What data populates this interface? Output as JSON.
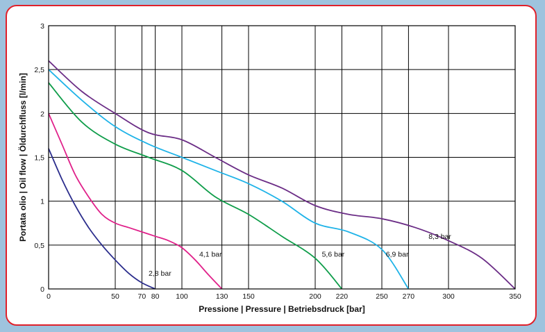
{
  "chart_data": {
    "type": "line",
    "xlabel": "Pressione | Pressure | Betriebsdruck [bar]",
    "ylabel": "Portata olio | Oil flow | Öldurchfluss [l/min]",
    "xlim": [
      0,
      350
    ],
    "ylim": [
      0,
      3
    ],
    "xticks": [
      0,
      50,
      70,
      80,
      100,
      130,
      150,
      200,
      220,
      250,
      270,
      300,
      350
    ],
    "xtick_labels": [
      "0",
      "50",
      "70",
      "80",
      "100",
      "130",
      "150",
      "200",
      "220",
      "250",
      "270",
      "300",
      "350"
    ],
    "yticks": [
      0,
      0.5,
      1,
      1.5,
      2,
      2.5,
      3
    ],
    "ytick_labels": [
      "0",
      "0,5",
      "1",
      "1,5",
      "2",
      "2,5",
      "3"
    ],
    "grid": true,
    "series": [
      {
        "name": "2,8 bar",
        "color": "#2b2d8c",
        "x": [
          0,
          10,
          20,
          30,
          40,
          50,
          60,
          70,
          80
        ],
        "y": [
          1.6,
          1.25,
          0.95,
          0.7,
          0.5,
          0.33,
          0.18,
          0.07,
          0.0
        ]
      },
      {
        "name": "4,1 bar",
        "color": "#e0218a",
        "x": [
          0,
          10,
          20,
          30,
          40,
          50,
          60,
          70,
          80,
          90,
          100,
          110,
          120,
          130
        ],
        "y": [
          2.0,
          1.65,
          1.3,
          1.05,
          0.85,
          0.75,
          0.7,
          0.65,
          0.6,
          0.55,
          0.47,
          0.33,
          0.16,
          0.0
        ]
      },
      {
        "name": "5,6 bar",
        "color": "#0f9d4a",
        "x": [
          0,
          25,
          50,
          75,
          100,
          125,
          150,
          175,
          200,
          220
        ],
        "y": [
          2.35,
          1.9,
          1.65,
          1.5,
          1.35,
          1.05,
          0.85,
          0.6,
          0.35,
          0.0
        ]
      },
      {
        "name": "6,9 bar",
        "color": "#1fb3e8",
        "x": [
          0,
          25,
          50,
          75,
          100,
          125,
          150,
          175,
          200,
          225,
          250,
          270
        ],
        "y": [
          2.5,
          2.15,
          1.85,
          1.65,
          1.5,
          1.35,
          1.2,
          1.0,
          0.75,
          0.65,
          0.45,
          0.0
        ]
      },
      {
        "name": "8,3 bar",
        "color": "#6b2d86",
        "x": [
          0,
          25,
          50,
          75,
          100,
          125,
          150,
          175,
          200,
          225,
          250,
          275,
          300,
          325,
          350
        ],
        "y": [
          2.6,
          2.25,
          2.0,
          1.78,
          1.7,
          1.5,
          1.3,
          1.15,
          0.95,
          0.85,
          0.8,
          0.7,
          0.55,
          0.35,
          0.0
        ]
      }
    ],
    "annotations": [
      {
        "text": "2,8 bar",
        "x": 75,
        "y": 0.15
      },
      {
        "text": "4,1 bar",
        "x": 113,
        "y": 0.37
      },
      {
        "text": "5,6 bar",
        "x": 205,
        "y": 0.37
      },
      {
        "text": "6,9 bar",
        "x": 253,
        "y": 0.37
      },
      {
        "text": "8,3 bar",
        "x": 285,
        "y": 0.57
      }
    ]
  }
}
